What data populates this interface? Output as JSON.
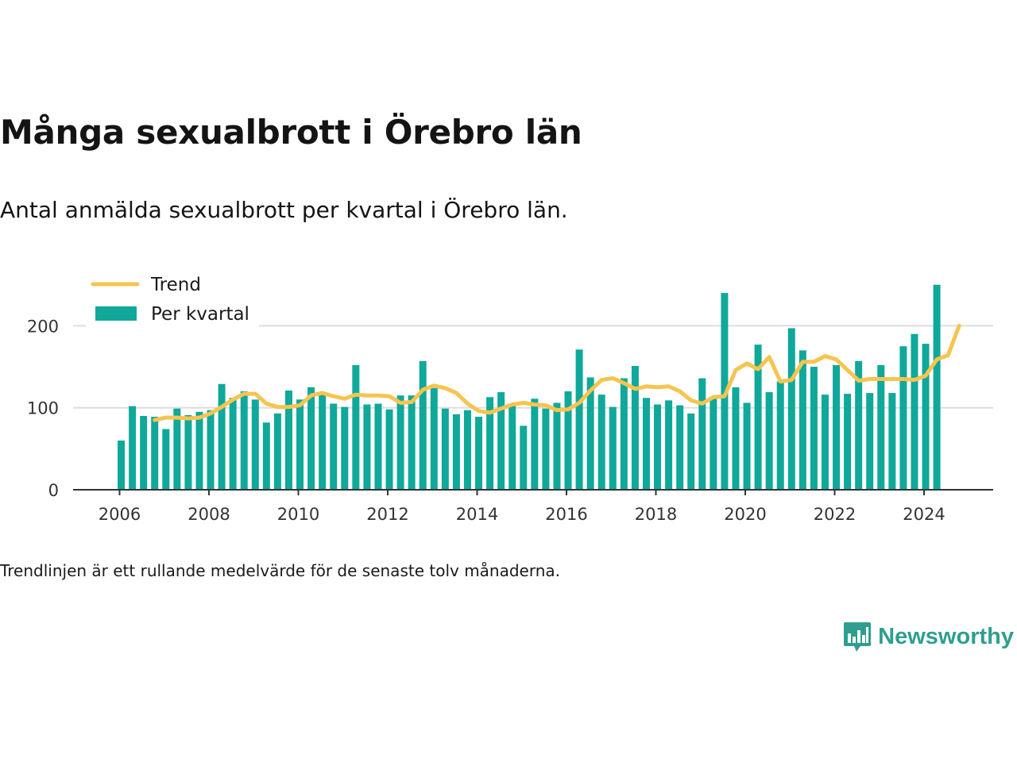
{
  "title": "Många sexualbrott i Örebro län",
  "subtitle": "Antal anmälda sexualbrott per kvartal i Örebro län.",
  "footnote": "Trendlinjen är ett rullande medelvärde för de senaste tolv månaderna.",
  "brand": "Newsworthy",
  "colors": {
    "bar": "#0fa89b",
    "trend": "#f6c450",
    "grid": "#dedede",
    "axis": "#333333",
    "brand": "#2f9e8f"
  },
  "chart_data": {
    "type": "bar",
    "x_start_year": 2006,
    "x_tick_labels": [
      "2006",
      "2008",
      "2010",
      "2012",
      "2014",
      "2016",
      "2018",
      "2020",
      "2022",
      "2024"
    ],
    "y_tick_labels": [
      "0",
      "100",
      "200"
    ],
    "ylim": [
      0,
      250
    ],
    "xlim": [
      "2005-07",
      "2025-06"
    ],
    "grid": true,
    "legend_position": "top-left",
    "series": [
      {
        "name": "Per kvartal",
        "type": "bar",
        "values": [
          60,
          102,
          90,
          89,
          74,
          99,
          91,
          95,
          97,
          129,
          112,
          120,
          110,
          82,
          93,
          121,
          110,
          125,
          116,
          105,
          101,
          152,
          104,
          105,
          98,
          115,
          115,
          157,
          124,
          99,
          92,
          97,
          89,
          113,
          119,
          104,
          78,
          111,
          99,
          106,
          120,
          171,
          137,
          116,
          101,
          136,
          151,
          112,
          104,
          109,
          103,
          93,
          136,
          111,
          240,
          125,
          106,
          177,
          119,
          132,
          197,
          170,
          150,
          116,
          152,
          117,
          157,
          118,
          152,
          118,
          175,
          190,
          178,
          250
        ]
      },
      {
        "name": "Trend",
        "type": "line",
        "start_index": 3,
        "values": [
          85,
          88,
          88,
          87,
          88,
          93,
          101,
          110,
          117,
          117,
          105,
          101,
          101,
          103,
          115,
          118,
          114,
          111,
          116,
          115,
          115,
          114,
          106,
          107,
          122,
          127,
          124,
          118,
          105,
          96,
          94,
          99,
          104,
          106,
          104,
          103,
          97,
          98,
          106,
          121,
          134,
          136,
          130,
          123,
          126,
          125,
          126,
          120,
          109,
          105,
          113,
          114,
          146,
          154,
          147,
          162,
          132,
          134,
          156,
          156,
          163,
          159,
          146,
          133,
          135,
          135,
          135,
          135,
          134,
          139,
          159,
          164,
          200
        ]
      }
    ]
  }
}
